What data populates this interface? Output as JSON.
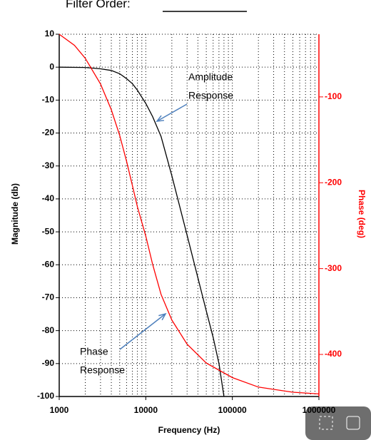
{
  "chart_data": {
    "type": "line",
    "title": "Filter Order:",
    "xlabel": "Frequency (Hz)",
    "ylabel": "Magnitude (db)",
    "y2label": "Phase (deg)",
    "xscale": "log",
    "grid": true,
    "xlim": [
      1000,
      1000000
    ],
    "xticks": [
      1000,
      10000,
      100000,
      1000000
    ],
    "ylim": [
      -100,
      10
    ],
    "yticks": [
      10,
      0,
      -10,
      -20,
      -30,
      -40,
      -50,
      -60,
      -70,
      -80,
      -90,
      -100
    ],
    "y2lim": [
      -449,
      -27
    ],
    "y2ticks": [
      -100,
      -200,
      -300,
      -400
    ],
    "series": [
      {
        "name": "Amplitude Response",
        "color": "#000000",
        "x": [
          1000,
          2000,
          3000,
          4000,
          5000,
          6000,
          7000,
          8000,
          10000,
          12000,
          15000,
          20000,
          30000,
          40000,
          50000,
          60000,
          70000,
          80000
        ],
        "values": [
          0,
          -0.1,
          -0.5,
          -1,
          -2,
          -3.5,
          -5,
          -7,
          -11,
          -15,
          -21,
          -33,
          -51,
          -64,
          -74,
          -82,
          -90,
          -100
        ]
      },
      {
        "name": "Phase Response",
        "color": "#ff0000",
        "axis": "y2",
        "x": [
          1000,
          1500,
          2000,
          3000,
          4000,
          5000,
          6000,
          7000,
          8000,
          10000,
          12000,
          15000,
          20000,
          30000,
          50000,
          100000,
          200000,
          500000,
          1000000
        ],
        "values": [
          -27,
          -40,
          -55,
          -85,
          -115,
          -145,
          -175,
          -203,
          -228,
          -262,
          -295,
          -330,
          -360,
          -388,
          -410,
          -427,
          -438,
          -444,
          -446
        ]
      }
    ],
    "annotations": [
      "Amplitude",
      "Response",
      "Phase",
      "Response"
    ]
  }
}
